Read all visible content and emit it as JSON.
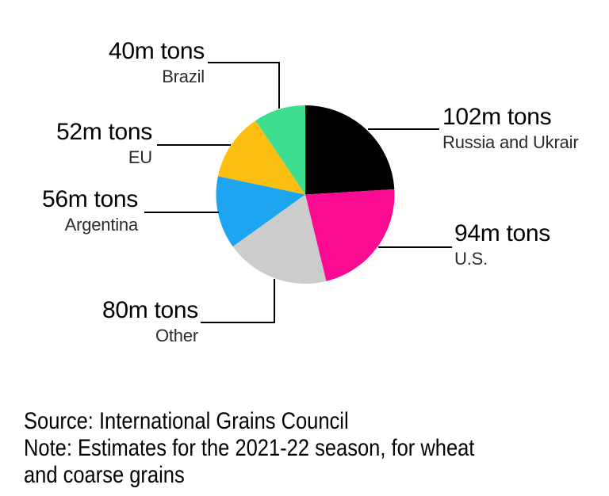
{
  "chart_data": {
    "type": "pie",
    "title": "",
    "unit": "m tons",
    "direction": "clockwise",
    "start_angle_deg": 0,
    "legend_position": "callout-labels",
    "leader_line_color": "#000000",
    "slices": [
      {
        "name": "Russia and Ukrair",
        "value": 102,
        "value_label": "102m tons",
        "color": "#000000"
      },
      {
        "name": "U.S.",
        "value": 94,
        "value_label": "94m tons",
        "color": "#FB0A92"
      },
      {
        "name": "Other",
        "value": 80,
        "value_label": "80m tons",
        "color": "#CCCCCC"
      },
      {
        "name": "Argentina",
        "value": 56,
        "value_label": "56m tons",
        "color": "#1EA5F2"
      },
      {
        "name": "EU",
        "value": 52,
        "value_label": "52m tons",
        "color": "#FCBE11"
      },
      {
        "name": "Brazil",
        "value": 40,
        "value_label": "40m tons",
        "color": "#3EDE90"
      }
    ]
  },
  "footer": {
    "source": "Source: International Grains Council",
    "note_line1": "Note: Estimates for the 2021-22 season, for wheat",
    "note_line2": "and coarse grains"
  }
}
